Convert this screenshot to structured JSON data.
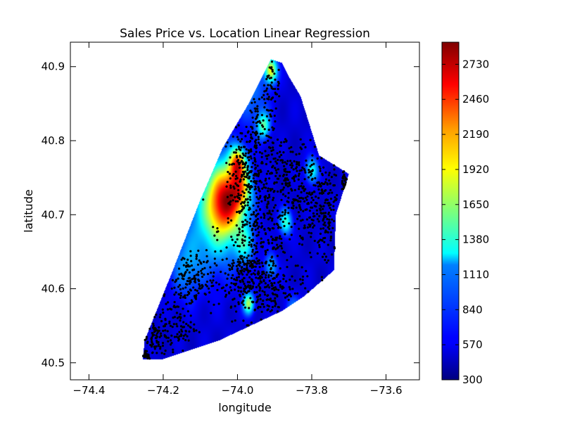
{
  "chart_data": {
    "type": "heatmap",
    "title": "Sales Price vs. Location Linear Regression",
    "xlabel": "longitude",
    "ylabel": "latitude",
    "xlim": [
      -74.45,
      -73.51
    ],
    "ylim": [
      40.477,
      40.933
    ],
    "x_ticks": [
      -74.4,
      -74.2,
      -74.0,
      -73.8,
      -73.6
    ],
    "x_tick_labels": [
      "−74.4",
      "−74.2",
      "−74.0",
      "−73.8",
      "−73.6"
    ],
    "y_ticks": [
      40.5,
      40.6,
      40.7,
      40.8,
      40.9
    ],
    "y_tick_labels": [
      "40.5",
      "40.6",
      "40.7",
      "40.8",
      "40.9"
    ],
    "grid": false,
    "colormap": "jet",
    "colorbar": {
      "min": 300,
      "max": 2900,
      "ticks": [
        300,
        570,
        840,
        1110,
        1380,
        1650,
        1920,
        2190,
        2460,
        2730
      ],
      "tick_labels": [
        "300",
        "570",
        "840",
        "1110",
        "1380",
        "1650",
        "1920",
        "2190",
        "2460",
        "2730"
      ]
    },
    "region_outline": [
      [
        -74.255,
        40.505
      ],
      [
        -74.25,
        40.53
      ],
      [
        -74.17,
        40.63
      ],
      [
        -74.1,
        40.72
      ],
      [
        -74.04,
        40.79
      ],
      [
        -73.97,
        40.85
      ],
      [
        -73.91,
        40.91
      ],
      [
        -73.88,
        40.905
      ],
      [
        -73.86,
        40.885
      ],
      [
        -73.83,
        40.86
      ],
      [
        -73.78,
        40.78
      ],
      [
        -73.7,
        40.755
      ],
      [
        -73.735,
        40.7
      ],
      [
        -73.74,
        40.625
      ],
      [
        -73.82,
        40.59
      ],
      [
        -73.88,
        40.57
      ],
      [
        -74.05,
        40.53
      ],
      [
        -74.2,
        40.505
      ]
    ],
    "base_value": 520,
    "hotspots": [
      {
        "lon": -74.03,
        "lat": 40.72,
        "value": 2150,
        "spread": 0.032
      },
      {
        "lon": -74.06,
        "lat": 40.7,
        "value": 1350,
        "spread": 0.05
      },
      {
        "lon": -74.0,
        "lat": 40.77,
        "value": 2000,
        "spread": 0.015
      },
      {
        "lon": -73.99,
        "lat": 40.735,
        "value": 1450,
        "spread": 0.02
      },
      {
        "lon": -73.91,
        "lat": 40.895,
        "value": 1900,
        "spread": 0.012
      },
      {
        "lon": -73.93,
        "lat": 40.82,
        "value": 1450,
        "spread": 0.012
      },
      {
        "lon": -73.87,
        "lat": 40.69,
        "value": 1400,
        "spread": 0.012
      },
      {
        "lon": -73.8,
        "lat": 40.76,
        "value": 1350,
        "spread": 0.012
      },
      {
        "lon": -73.98,
        "lat": 40.66,
        "value": 1150,
        "spread": 0.018
      },
      {
        "lon": -73.97,
        "lat": 40.58,
        "value": 1700,
        "spread": 0.01
      },
      {
        "lon": -73.91,
        "lat": 40.63,
        "value": 1100,
        "spread": 0.012
      },
      {
        "lon": -73.85,
        "lat": 40.57,
        "value": 950,
        "spread": 0.015
      },
      {
        "lon": -74.14,
        "lat": 40.63,
        "value": 950,
        "spread": 0.03
      },
      {
        "lon": -73.96,
        "lat": 40.86,
        "value": 900,
        "spread": 0.03
      }
    ],
    "sale_points_color": "#000000",
    "sale_point_clusters": [
      {
        "lon": -73.99,
        "lat": 40.76,
        "sx": 0.018,
        "sy": 0.03,
        "n": 130
      },
      {
        "lon": -73.95,
        "lat": 40.8,
        "sx": 0.015,
        "sy": 0.05,
        "n": 110
      },
      {
        "lon": -73.91,
        "lat": 40.87,
        "sx": 0.012,
        "sy": 0.03,
        "n": 80
      },
      {
        "lon": -73.95,
        "lat": 40.68,
        "sx": 0.05,
        "sy": 0.04,
        "n": 280
      },
      {
        "lon": -73.82,
        "lat": 40.72,
        "sx": 0.05,
        "sy": 0.04,
        "n": 240
      },
      {
        "lon": -73.76,
        "lat": 40.7,
        "sx": 0.02,
        "sy": 0.04,
        "n": 110
      },
      {
        "lon": -73.88,
        "lat": 40.76,
        "sx": 0.05,
        "sy": 0.025,
        "n": 150
      },
      {
        "lon": -73.97,
        "lat": 40.61,
        "sx": 0.04,
        "sy": 0.025,
        "n": 240
      },
      {
        "lon": -73.9,
        "lat": 40.6,
        "sx": 0.04,
        "sy": 0.02,
        "n": 110
      },
      {
        "lon": -74.13,
        "lat": 40.61,
        "sx": 0.035,
        "sy": 0.02,
        "n": 160
      },
      {
        "lon": -74.17,
        "lat": 40.55,
        "sx": 0.03,
        "sy": 0.02,
        "n": 110
      },
      {
        "lon": -74.22,
        "lat": 40.53,
        "sx": 0.02,
        "sy": 0.015,
        "n": 70
      },
      {
        "lon": -74.245,
        "lat": 40.507,
        "sx": 0.006,
        "sy": 0.005,
        "n": 45
      },
      {
        "lon": -73.71,
        "lat": 40.745,
        "sx": 0.006,
        "sy": 0.01,
        "n": 35
      }
    ]
  }
}
